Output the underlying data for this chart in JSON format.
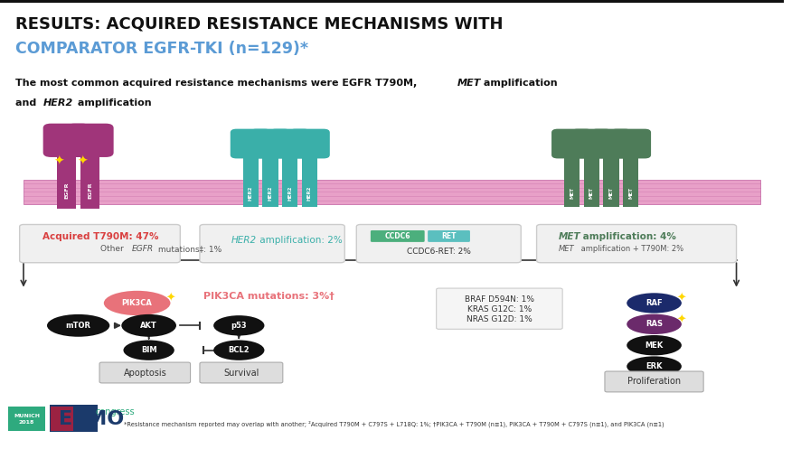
{
  "title_line1": "RESULTS: ACQUIRED RESISTANCE MECHANISMS WITH",
  "title_line2": "COMPARATOR EGFR-TKI (n=129)*",
  "title_color": "#111111",
  "title2_color": "#5B9BD5",
  "bg_color": "#FFFFFF",
  "footnote": "*Resistance mechanism reported may overlap with another; ²Acquired T790M + C797S + L718Q: 1%; †PIK3CA + T790M (n≡1), PIK3CA + T790M + C797S (n≡1), and PIK3CA (n≡1)",
  "pik3ca_label": "PIK3CA mutations: 3%†",
  "apoptosis_label": "Apoptosis",
  "survival_label": "Survival",
  "proliferation_label": "Proliferation",
  "membrane_color": "#E8A0C8",
  "membrane_edge": "#C060A0",
  "egfr_color": "#A0357A",
  "her2_color": "#3AAFA9",
  "met_color": "#4E7C59"
}
